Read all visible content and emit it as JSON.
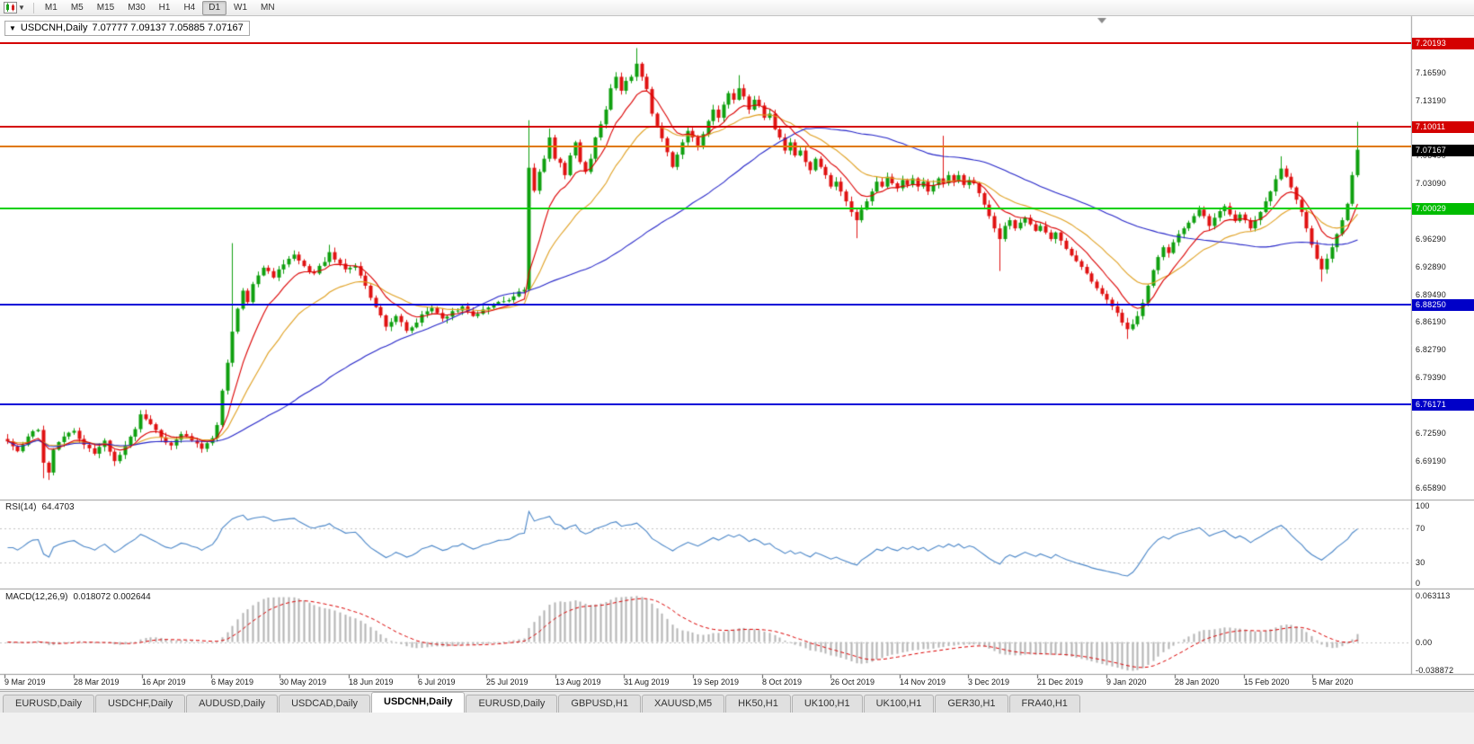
{
  "toolbar": {
    "timeframes": [
      "M1",
      "M5",
      "M15",
      "M30",
      "H1",
      "H4",
      "D1",
      "W1",
      "MN"
    ],
    "active_timeframe": "D1"
  },
  "chart": {
    "title": {
      "collapse_icon": "▼",
      "symbol_period": "USDCNH,Daily",
      "ohlc": "7.07777 7.09137 7.05885 7.07167"
    },
    "price_range": [
      6.645,
      7.235
    ],
    "colors": {
      "background": "#ffffff",
      "bull": "#0fa00f",
      "bear": "#e01212",
      "ma_fast": "#dc0000",
      "ma_mid": "#e0a020",
      "ma_slow": "#2424c8",
      "rsi_line": "#4a86c8",
      "macd_hist": "#b4b4b4",
      "macd_signal": "#dc0000",
      "grid_dash": "#c4c4c4",
      "separator": "#9a9a9a",
      "axis_text": "#1a1a1a",
      "tick": "#555555"
    },
    "levels": [
      {
        "name": "resistance-line-7-20193",
        "price": 7.20193,
        "label": "7.20193",
        "line": "#d40000",
        "badge": "#d40000",
        "thickness": 2
      },
      {
        "name": "resistance-line-7-10011",
        "price": 7.10011,
        "label": "7.10011",
        "line": "#d40000",
        "badge": "#d40000",
        "thickness": 2
      },
      {
        "name": "orange-price-line",
        "price": 7.076,
        "label": "",
        "line": "#e07800",
        "badge": "",
        "thickness": 2
      },
      {
        "name": "support-line-7-00029",
        "price": 7.00029,
        "label": "7.00029",
        "line": "#00d000",
        "badge": "#00bc00",
        "thickness": 2
      },
      {
        "name": "support-line-6-88250",
        "price": 6.8825,
        "label": "6.88250",
        "line": "#0000d8",
        "badge": "#0000c8",
        "thickness": 2
      },
      {
        "name": "support-line-6-76171",
        "price": 6.76171,
        "label": "6.76171",
        "line": "#0000d8",
        "badge": "#0000c8",
        "thickness": 2
      }
    ],
    "current_price": {
      "price": 7.07167,
      "label": "7.07167",
      "badge": "#000000"
    },
    "axis_ticks": [
      {
        "price": 7.1659,
        "label": "7.16590"
      },
      {
        "price": 7.1319,
        "label": "7.13190"
      },
      {
        "price": 7.0649,
        "label": "7.06490"
      },
      {
        "price": 7.0309,
        "label": "7.03090"
      },
      {
        "price": 6.9969,
        "label": "6.99690"
      },
      {
        "price": 6.9629,
        "label": "6.96290"
      },
      {
        "price": 6.9289,
        "label": "6.92890"
      },
      {
        "price": 6.8949,
        "label": "6.89490"
      },
      {
        "price": 6.8619,
        "label": "6.86190"
      },
      {
        "price": 6.8279,
        "label": "6.82790"
      },
      {
        "price": 6.7939,
        "label": "6.79390"
      },
      {
        "price": 6.7599,
        "label": "6.75990"
      },
      {
        "price": 6.7259,
        "label": "6.72590"
      },
      {
        "price": 6.6919,
        "label": "6.69190"
      },
      {
        "price": 6.6589,
        "label": "6.65890"
      }
    ],
    "time_labels": [
      "9 Mar 2019",
      "28 Mar 2019",
      "16 Apr 2019",
      "6 May 2019",
      "30 May 2019",
      "18 Jun 2019",
      "6 Jul 2019",
      "25 Jul 2019",
      "13 Aug 2019",
      "31 Aug 2019",
      "19 Sep 2019",
      "8 Oct 2019",
      "26 Oct 2019",
      "14 Nov 2019",
      "3 Dec 2019",
      "21 Dec 2019",
      "9 Jan 2020",
      "28 Jan 2020",
      "15 Feb 2020",
      "5 Mar 2020"
    ],
    "candles": {
      "count": 265,
      "anchors": [
        [
          0,
          6.716
        ],
        [
          2,
          6.704
        ],
        [
          4,
          6.722
        ],
        [
          6,
          6.73
        ],
        [
          7,
          6.69
        ],
        [
          8,
          6.678
        ],
        [
          9,
          6.706
        ],
        [
          11,
          6.722
        ],
        [
          13,
          6.729
        ],
        [
          15,
          6.712
        ],
        [
          17,
          6.701
        ],
        [
          19,
          6.717
        ],
        [
          21,
          6.692
        ],
        [
          23,
          6.711
        ],
        [
          25,
          6.731
        ],
        [
          26,
          6.749
        ],
        [
          28,
          6.737
        ],
        [
          30,
          6.721
        ],
        [
          32,
          6.711
        ],
        [
          34,
          6.725
        ],
        [
          36,
          6.717
        ],
        [
          38,
          6.707
        ],
        [
          40,
          6.72
        ],
        [
          41,
          6.736
        ],
        [
          42,
          6.778
        ],
        [
          43,
          6.812
        ],
        [
          44,
          6.85
        ],
        [
          45,
          6.878
        ],
        [
          46,
          6.9
        ],
        [
          47,
          6.886
        ],
        [
          48,
          6.908
        ],
        [
          50,
          6.928
        ],
        [
          52,
          6.916
        ],
        [
          54,
          6.932
        ],
        [
          56,
          6.944
        ],
        [
          58,
          6.93
        ],
        [
          60,
          6.921
        ],
        [
          62,
          6.935
        ],
        [
          63,
          6.947
        ],
        [
          64,
          6.938
        ],
        [
          66,
          6.926
        ],
        [
          68,
          6.93
        ],
        [
          70,
          6.906
        ],
        [
          72,
          6.88
        ],
        [
          74,
          6.856
        ],
        [
          76,
          6.869
        ],
        [
          78,
          6.851
        ],
        [
          80,
          6.861
        ],
        [
          81,
          6.871
        ],
        [
          83,
          6.879
        ],
        [
          85,
          6.866
        ],
        [
          87,
          6.875
        ],
        [
          89,
          6.881
        ],
        [
          91,
          6.869
        ],
        [
          93,
          6.877
        ],
        [
          95,
          6.883
        ],
        [
          97,
          6.887
        ],
        [
          99,
          6.893
        ],
        [
          101,
          6.901
        ],
        [
          102,
          7.05
        ],
        [
          103,
          7.022
        ],
        [
          104,
          7.045
        ],
        [
          105,
          7.061
        ],
        [
          106,
          7.087
        ],
        [
          107,
          7.061
        ],
        [
          108,
          7.056
        ],
        [
          109,
          7.041
        ],
        [
          110,
          7.065
        ],
        [
          111,
          7.081
        ],
        [
          112,
          7.057
        ],
        [
          113,
          7.045
        ],
        [
          114,
          7.061
        ],
        [
          115,
          7.087
        ],
        [
          116,
          7.103
        ],
        [
          117,
          7.121
        ],
        [
          118,
          7.147
        ],
        [
          119,
          7.161
        ],
        [
          120,
          7.144
        ],
        [
          121,
          7.156
        ],
        [
          122,
          7.161
        ],
        [
          123,
          7.177
        ],
        [
          124,
          7.161
        ],
        [
          125,
          7.146
        ],
        [
          126,
          7.116
        ],
        [
          127,
          7.101
        ],
        [
          128,
          7.086
        ],
        [
          129,
          7.069
        ],
        [
          130,
          7.051
        ],
        [
          131,
          7.066
        ],
        [
          132,
          7.081
        ],
        [
          133,
          7.095
        ],
        [
          134,
          7.087
        ],
        [
          135,
          7.077
        ],
        [
          136,
          7.091
        ],
        [
          137,
          7.107
        ],
        [
          138,
          7.121
        ],
        [
          139,
          7.111
        ],
        [
          140,
          7.127
        ],
        [
          141,
          7.141
        ],
        [
          142,
          7.133
        ],
        [
          143,
          7.147
        ],
        [
          144,
          7.137
        ],
        [
          145,
          7.121
        ],
        [
          146,
          7.133
        ],
        [
          147,
          7.126
        ],
        [
          148,
          7.111
        ],
        [
          149,
          7.116
        ],
        [
          150,
          7.097
        ],
        [
          151,
          7.087
        ],
        [
          152,
          7.071
        ],
        [
          153,
          7.081
        ],
        [
          154,
          7.065
        ],
        [
          155,
          7.071
        ],
        [
          156,
          7.057
        ],
        [
          157,
          7.047
        ],
        [
          158,
          7.061
        ],
        [
          159,
          7.051
        ],
        [
          160,
          7.041
        ],
        [
          161,
          7.027
        ],
        [
          162,
          7.033
        ],
        [
          163,
          7.021
        ],
        [
          164,
          7.009
        ],
        [
          165,
          6.996
        ],
        [
          166,
          6.986
        ],
        [
          167,
          6.999
        ],
        [
          168,
          7.009
        ],
        [
          169,
          7.021
        ],
        [
          170,
          7.033
        ],
        [
          171,
          7.027
        ],
        [
          172,
          7.039
        ],
        [
          173,
          7.031
        ],
        [
          174,
          7.025
        ],
        [
          175,
          7.035
        ],
        [
          176,
          7.029
        ],
        [
          177,
          7.037
        ],
        [
          178,
          7.027
        ],
        [
          179,
          7.033
        ],
        [
          180,
          7.021
        ],
        [
          181,
          7.029
        ],
        [
          182,
          7.037
        ],
        [
          183,
          7.031
        ],
        [
          184,
          7.041
        ],
        [
          185,
          7.033
        ],
        [
          186,
          7.041
        ],
        [
          187,
          7.029
        ],
        [
          188,
          7.035
        ],
        [
          189,
          7.031
        ],
        [
          190,
          7.019
        ],
        [
          191,
          7.005
        ],
        [
          192,
          6.991
        ],
        [
          193,
          6.976
        ],
        [
          194,
          6.963
        ],
        [
          195,
          6.979
        ],
        [
          196,
          6.986
        ],
        [
          197,
          6.976
        ],
        [
          198,
          6.983
        ],
        [
          199,
          6.989
        ],
        [
          200,
          6.981
        ],
        [
          201,
          6.973
        ],
        [
          202,
          6.979
        ],
        [
          203,
          6.971
        ],
        [
          204,
          6.963
        ],
        [
          205,
          6.971
        ],
        [
          206,
          6.961
        ],
        [
          207,
          6.951
        ],
        [
          208,
          6.943
        ],
        [
          209,
          6.936
        ],
        [
          210,
          6.929
        ],
        [
          211,
          6.921
        ],
        [
          212,
          6.911
        ],
        [
          213,
          6.903
        ],
        [
          214,
          6.896
        ],
        [
          215,
          6.889
        ],
        [
          216,
          6.881
        ],
        [
          217,
          6.873
        ],
        [
          218,
          6.861
        ],
        [
          219,
          6.853
        ],
        [
          220,
          6.859
        ],
        [
          221,
          6.869
        ],
        [
          222,
          6.885
        ],
        [
          223,
          6.906
        ],
        [
          224,
          6.925
        ],
        [
          225,
          6.941
        ],
        [
          226,
          6.953
        ],
        [
          227,
          6.946
        ],
        [
          228,
          6.959
        ],
        [
          229,
          6.969
        ],
        [
          230,
          6.976
        ],
        [
          231,
          6.983
        ],
        [
          232,
          6.991
        ],
        [
          233,
          6.999
        ],
        [
          234,
          6.991
        ],
        [
          235,
          6.979
        ],
        [
          236,
          6.989
        ],
        [
          237,
          6.997
        ],
        [
          238,
          7.003
        ],
        [
          239,
          6.993
        ],
        [
          240,
          6.985
        ],
        [
          241,
          6.993
        ],
        [
          242,
          6.986
        ],
        [
          243,
          6.976
        ],
        [
          244,
          6.986
        ],
        [
          245,
          6.996
        ],
        [
          246,
          7.009
        ],
        [
          247,
          7.021
        ],
        [
          248,
          7.036
        ],
        [
          249,
          7.049
        ],
        [
          250,
          7.039
        ],
        [
          251,
          7.026
        ],
        [
          252,
          7.011
        ],
        [
          253,
          6.996
        ],
        [
          254,
          6.976
        ],
        [
          255,
          6.956
        ],
        [
          256,
          6.939
        ],
        [
          257,
          6.926
        ],
        [
          258,
          6.939
        ],
        [
          259,
          6.953
        ],
        [
          260,
          6.969
        ],
        [
          261,
          6.986
        ],
        [
          262,
          7.006
        ],
        [
          263,
          7.041
        ],
        [
          264,
          7.072
        ]
      ],
      "wicks": [
        [
          7,
          null,
          6.671
        ],
        [
          8,
          null,
          6.669
        ],
        [
          21,
          null,
          6.686
        ],
        [
          44,
          6.958,
          null
        ],
        [
          63,
          6.956,
          null
        ],
        [
          102,
          7.108,
          6.899
        ],
        [
          106,
          7.098,
          null
        ],
        [
          118,
          7.152,
          null
        ],
        [
          123,
          7.196,
          null
        ],
        [
          143,
          7.163,
          null
        ],
        [
          166,
          null,
          6.964
        ],
        [
          183,
          7.089,
          null
        ],
        [
          194,
          null,
          6.924
        ],
        [
          219,
          null,
          6.841
        ],
        [
          249,
          7.064,
          null
        ],
        [
          257,
          null,
          6.911
        ],
        [
          264,
          7.106,
          null
        ]
      ]
    }
  },
  "rsi": {
    "label": "RSI(14)",
    "value": "64.4703",
    "period": 14,
    "levels": [
      {
        "v": 100,
        "label": "100"
      },
      {
        "v": 70,
        "label": "70"
      },
      {
        "v": 30,
        "label": "30"
      },
      {
        "v": 0,
        "label": "0"
      }
    ]
  },
  "macd": {
    "label": "MACD(12,26,9)",
    "values": "0.018072 0.002644",
    "fast": 12,
    "slow": 26,
    "signal": 9,
    "range": [
      -0.038872,
      0.063113
    ],
    "axis": [
      {
        "v": 0.063113,
        "label": "0.063113"
      },
      {
        "v": 0,
        "label": "0.00"
      },
      {
        "v": -0.038872,
        "label": "-0.038872"
      }
    ]
  },
  "tabs": [
    {
      "label": "EURUSD,Daily",
      "active": false
    },
    {
      "label": "USDCHF,Daily",
      "active": false
    },
    {
      "label": "AUDUSD,Daily",
      "active": false
    },
    {
      "label": "USDCAD,Daily",
      "active": false
    },
    {
      "label": "USDCNH,Daily",
      "active": true
    },
    {
      "label": "EURUSD,Daily",
      "active": false
    },
    {
      "label": "GBPUSD,H1",
      "active": false
    },
    {
      "label": "XAUUSD,M5",
      "active": false
    },
    {
      "label": "HK50,H1",
      "active": false
    },
    {
      "label": "UK100,H1",
      "active": false
    },
    {
      "label": "UK100,H1",
      "active": false
    },
    {
      "label": "GER30,H1",
      "active": false
    },
    {
      "label": "FRA40,H1",
      "active": false
    }
  ]
}
